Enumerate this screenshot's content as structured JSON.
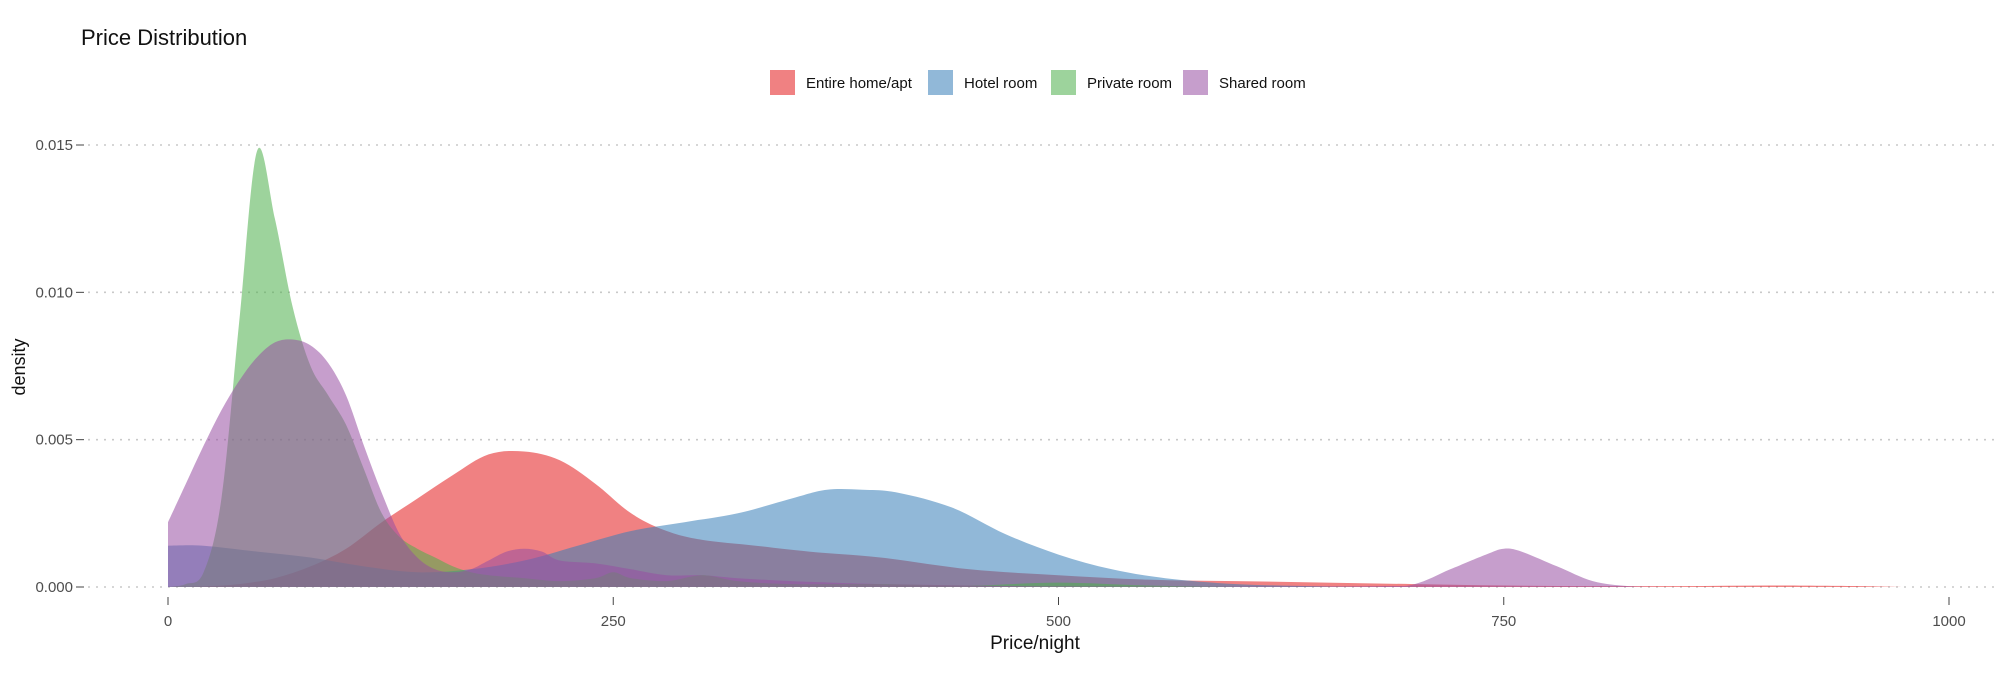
{
  "chart_data": {
    "type": "area",
    "title": "Price Distribution",
    "xlabel": "Price/night",
    "ylabel": "density",
    "xlim": [
      -80,
      1030
    ],
    "ylim": [
      0,
      0.0155
    ],
    "x_ticks": [
      0,
      250,
      500,
      750,
      1000
    ],
    "x_tick_labels": [
      "0",
      "250",
      "500",
      "750",
      "1000"
    ],
    "y_ticks": [
      0,
      0.005,
      0.01,
      0.015
    ],
    "y_tick_labels": [
      "0.000",
      "0.005",
      "0.010",
      "0.015"
    ],
    "grid": "horizontal dotted",
    "legend_position": "top",
    "series": [
      {
        "name": "Entire home/apt",
        "color": "#E41A1C",
        "points": [
          [
            0,
            0
          ],
          [
            20,
            2e-05
          ],
          [
            40,
            0.0001
          ],
          [
            60,
            0.0003
          ],
          [
            80,
            0.0007
          ],
          [
            100,
            0.0013
          ],
          [
            120,
            0.0022
          ],
          [
            140,
            0.003
          ],
          [
            160,
            0.0038
          ],
          [
            180,
            0.0045
          ],
          [
            200,
            0.0046
          ],
          [
            220,
            0.0043
          ],
          [
            240,
            0.0035
          ],
          [
            260,
            0.0025
          ],
          [
            280,
            0.0019
          ],
          [
            300,
            0.0016
          ],
          [
            330,
            0.0014
          ],
          [
            360,
            0.0012
          ],
          [
            400,
            0.001
          ],
          [
            450,
            0.0006
          ],
          [
            500,
            0.0004
          ],
          [
            550,
            0.00025
          ],
          [
            600,
            0.0002
          ],
          [
            650,
            0.00015
          ],
          [
            700,
            0.0001
          ],
          [
            750,
            5e-05
          ],
          [
            800,
            3e-05
          ],
          [
            850,
            3e-05
          ],
          [
            900,
            5e-05
          ],
          [
            950,
            3e-05
          ],
          [
            975,
            0
          ]
        ]
      },
      {
        "name": "Hotel room",
        "color": "#377EB8",
        "points": [
          [
            0,
            0.0014
          ],
          [
            20,
            0.0014
          ],
          [
            50,
            0.0012
          ],
          [
            80,
            0.001
          ],
          [
            110,
            0.0007
          ],
          [
            140,
            0.0005
          ],
          [
            170,
            0.0006
          ],
          [
            200,
            0.0009
          ],
          [
            230,
            0.0014
          ],
          [
            260,
            0.0019
          ],
          [
            290,
            0.0022
          ],
          [
            320,
            0.0025
          ],
          [
            350,
            0.003
          ],
          [
            370,
            0.0033
          ],
          [
            390,
            0.0033
          ],
          [
            410,
            0.0032
          ],
          [
            440,
            0.0027
          ],
          [
            470,
            0.0018
          ],
          [
            500,
            0.0011
          ],
          [
            530,
            0.0006
          ],
          [
            560,
            0.0003
          ],
          [
            600,
            0.0001
          ],
          [
            650,
            2e-05
          ],
          [
            700,
            0
          ]
        ]
      },
      {
        "name": "Private room",
        "color": "#4DAF4A",
        "points": [
          [
            0,
            0
          ],
          [
            10,
            0.0001
          ],
          [
            20,
            0.0005
          ],
          [
            30,
            0.003
          ],
          [
            40,
            0.009
          ],
          [
            50,
            0.0148
          ],
          [
            60,
            0.0125
          ],
          [
            70,
            0.0095
          ],
          [
            80,
            0.0075
          ],
          [
            90,
            0.0065
          ],
          [
            100,
            0.0055
          ],
          [
            110,
            0.004
          ],
          [
            120,
            0.0025
          ],
          [
            130,
            0.0017
          ],
          [
            140,
            0.0013
          ],
          [
            150,
            0.001
          ],
          [
            160,
            0.0007
          ],
          [
            170,
            0.0005
          ],
          [
            180,
            0.0004
          ],
          [
            200,
            0.0003
          ],
          [
            220,
            0.0002
          ],
          [
            240,
            0.0003
          ],
          [
            250,
            0.0005
          ],
          [
            260,
            0.0003
          ],
          [
            280,
            0.0002
          ],
          [
            300,
            0.0004
          ],
          [
            320,
            0.0002
          ],
          [
            350,
            0.0001
          ],
          [
            400,
            0.0001
          ],
          [
            450,
            5e-05
          ],
          [
            500,
            0.00015
          ],
          [
            550,
            5e-05
          ],
          [
            600,
            0
          ]
        ]
      },
      {
        "name": "Shared room",
        "color": "#984EA3",
        "points": [
          [
            0,
            0.0022
          ],
          [
            10,
            0.0035
          ],
          [
            20,
            0.0048
          ],
          [
            30,
            0.006
          ],
          [
            40,
            0.007
          ],
          [
            50,
            0.0078
          ],
          [
            60,
            0.0083
          ],
          [
            70,
            0.0084
          ],
          [
            80,
            0.0082
          ],
          [
            90,
            0.0076
          ],
          [
            100,
            0.0065
          ],
          [
            110,
            0.0048
          ],
          [
            120,
            0.0032
          ],
          [
            130,
            0.0018
          ],
          [
            140,
            0.001
          ],
          [
            150,
            0.0006
          ],
          [
            160,
            0.0005
          ],
          [
            170,
            0.0006
          ],
          [
            180,
            0.0009
          ],
          [
            190,
            0.0012
          ],
          [
            200,
            0.0013
          ],
          [
            210,
            0.0012
          ],
          [
            220,
            0.0009
          ],
          [
            240,
            0.0008
          ],
          [
            260,
            0.0006
          ],
          [
            280,
            0.0004
          ],
          [
            300,
            0.0004
          ],
          [
            320,
            0.0003
          ],
          [
            350,
            0.0002
          ],
          [
            400,
            0.0001
          ],
          [
            450,
            5e-05
          ],
          [
            500,
            2e-05
          ],
          [
            600,
            1e-05
          ],
          [
            680,
            3e-05
          ],
          [
            700,
            0.0001
          ],
          [
            720,
            0.0006
          ],
          [
            740,
            0.0011
          ],
          [
            750,
            0.0013
          ],
          [
            760,
            0.0012
          ],
          [
            780,
            0.0007
          ],
          [
            800,
            0.0002
          ],
          [
            820,
            3e-05
          ],
          [
            840,
            0
          ]
        ]
      }
    ]
  }
}
